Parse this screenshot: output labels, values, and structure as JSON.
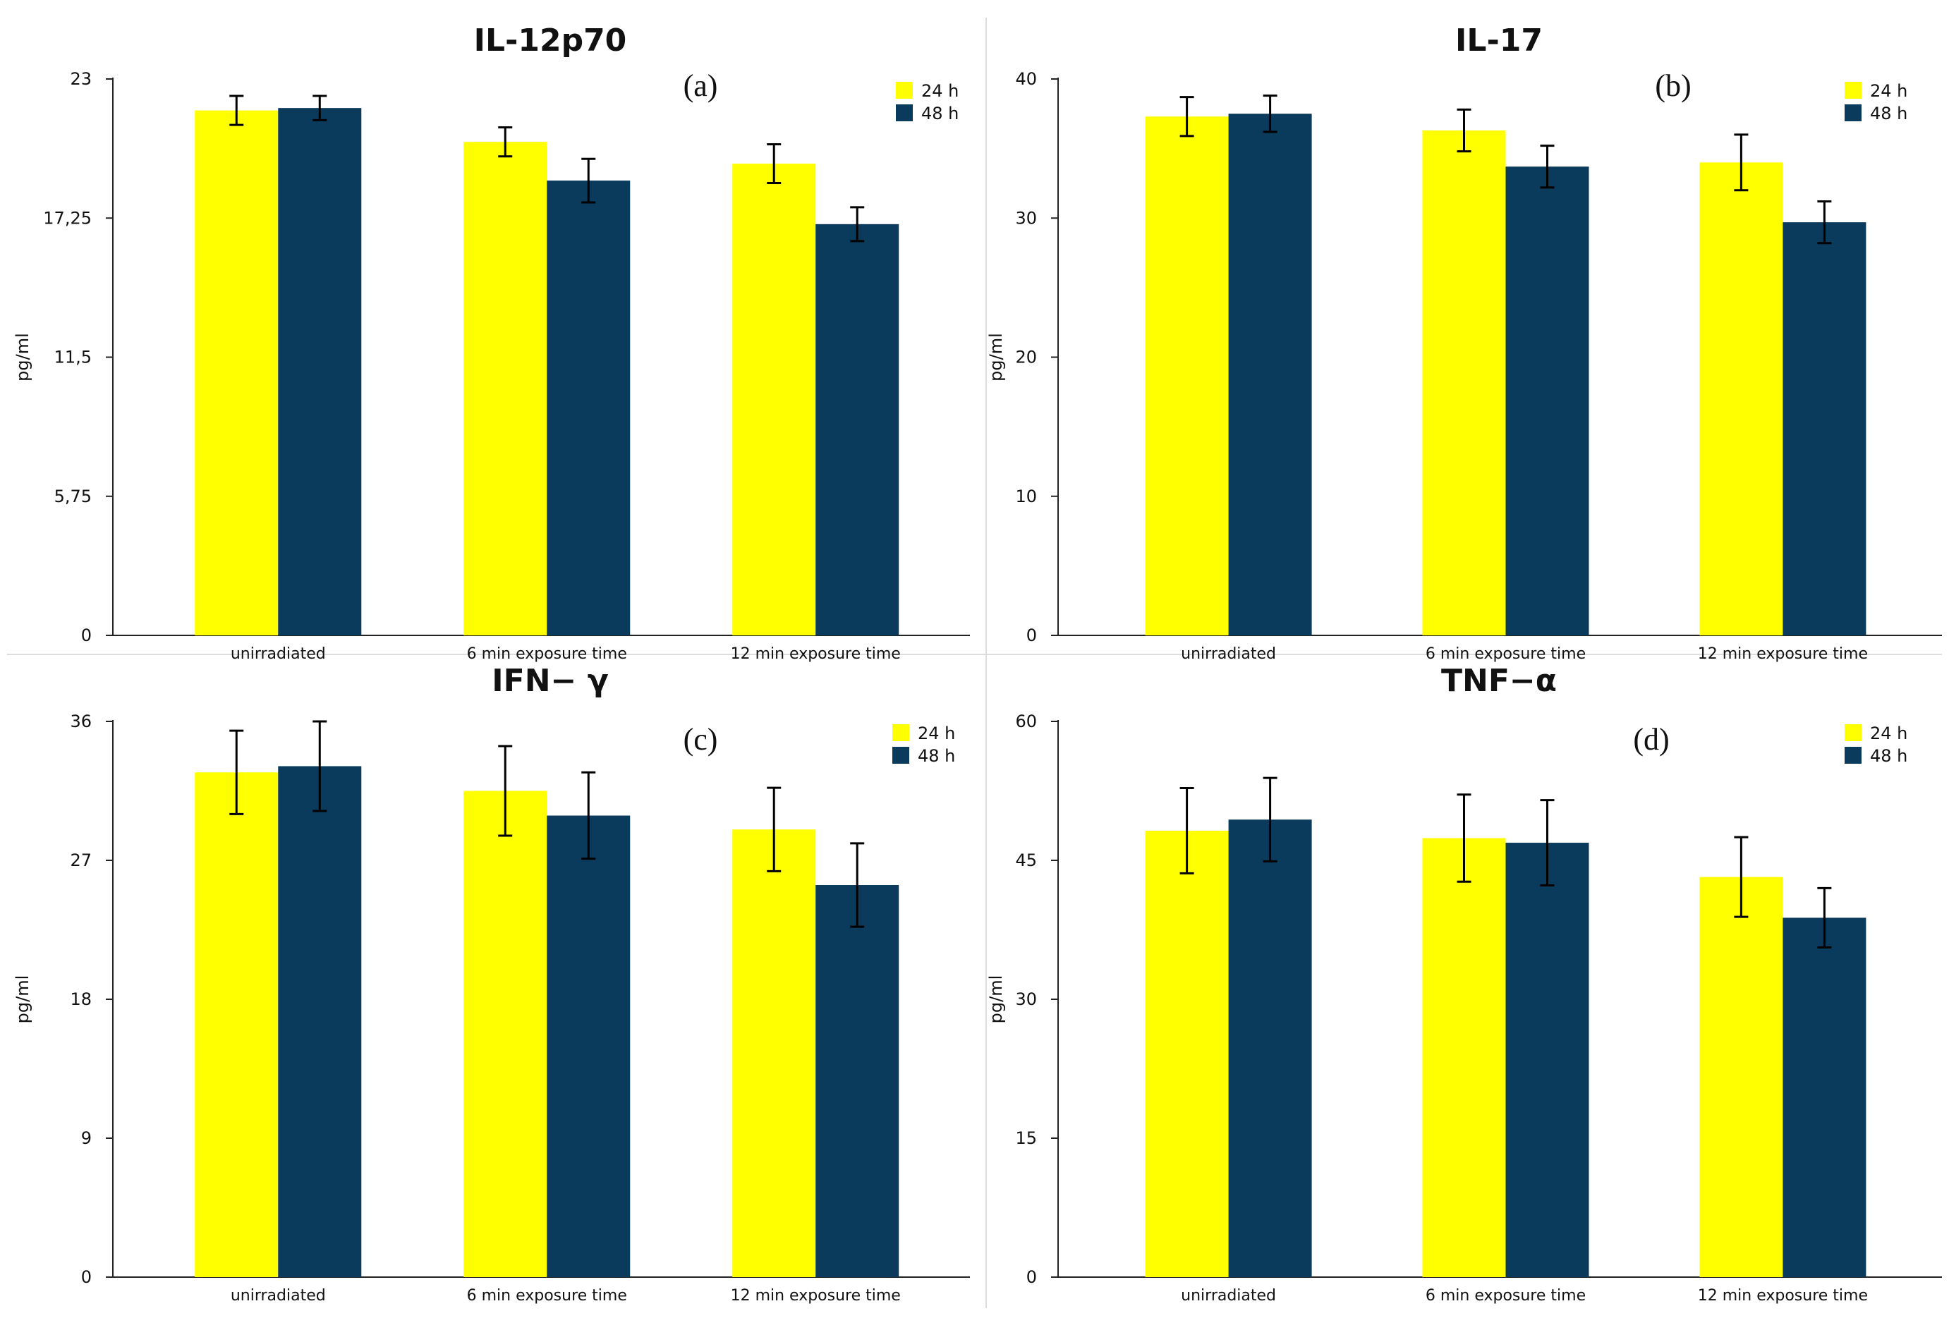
{
  "figure": {
    "colors": {
      "series_24h": "#ffff00",
      "series_48h": "#0a3a5c",
      "axis": "#222222",
      "text": "#111111",
      "divider": "#dddddd"
    }
  },
  "chart_data": [
    {
      "type": "bar",
      "title": "IL-12p70",
      "panel_label": "(a)",
      "xlabel": "",
      "ylabel": "pg/ml",
      "ylim": [
        0,
        23
      ],
      "yticks": [
        0,
        5.75,
        11.5,
        17.25,
        23
      ],
      "ytick_labels": [
        "0",
        "5,75",
        "11,5",
        "17,25",
        "23"
      ],
      "categories": [
        "unirradiated",
        "6 min exposure time",
        "12 min exposure time"
      ],
      "legend_position": "top-right",
      "series": [
        {
          "name": "24 h",
          "values": [
            21.7,
            20.4,
            19.5
          ],
          "errors": [
            0.6,
            0.6,
            0.8
          ]
        },
        {
          "name": "48 h",
          "values": [
            21.8,
            18.8,
            17.0
          ],
          "errors": [
            0.5,
            0.9,
            0.7
          ]
        }
      ]
    },
    {
      "type": "bar",
      "title": "IL-17",
      "panel_label": "(b)",
      "xlabel": "",
      "ylabel": "pg/ml",
      "ylim": [
        0,
        40
      ],
      "yticks": [
        0,
        10,
        20,
        30,
        40
      ],
      "ytick_labels": [
        "0",
        "10",
        "20",
        "30",
        "40"
      ],
      "categories": [
        "unirradiated",
        "6 min exposure time",
        "12 min exposure time"
      ],
      "legend_position": "top-right",
      "series": [
        {
          "name": "24 h",
          "values": [
            37.3,
            36.3,
            34.0
          ],
          "errors": [
            1.4,
            1.5,
            2.0
          ]
        },
        {
          "name": "48 h",
          "values": [
            37.5,
            33.7,
            29.7
          ],
          "errors": [
            1.3,
            1.5,
            1.5
          ]
        }
      ]
    },
    {
      "type": "bar",
      "title": "IFN− γ",
      "panel_label": "(c)",
      "xlabel": "",
      "ylabel": "pg/ml",
      "ylim": [
        0,
        36
      ],
      "yticks": [
        0,
        9,
        18,
        27,
        36
      ],
      "ytick_labels": [
        "0",
        "9",
        "18",
        "27",
        "36"
      ],
      "categories": [
        "unirradiated",
        "6 min exposure time",
        "12 min exposure time"
      ],
      "legend_position": "top-right",
      "series": [
        {
          "name": "24 h",
          "values": [
            32.7,
            31.5,
            29.0
          ],
          "errors": [
            2.7,
            2.9,
            2.7
          ]
        },
        {
          "name": "48 h",
          "values": [
            33.1,
            29.9,
            25.4
          ],
          "errors": [
            2.9,
            2.8,
            2.7
          ]
        }
      ]
    },
    {
      "type": "bar",
      "title": "TNF−α",
      "panel_label": "(d)",
      "xlabel": "",
      "ylabel": "pg/ml",
      "ylim": [
        0,
        60
      ],
      "yticks": [
        0,
        15,
        30,
        45,
        60
      ],
      "ytick_labels": [
        "0",
        "15",
        "30",
        "45",
        "60"
      ],
      "categories": [
        "unirradiated",
        "6 min exposure time",
        "12 min exposure time"
      ],
      "legend_position": "top-right",
      "series": [
        {
          "name": "24 h",
          "values": [
            48.2,
            47.4,
            43.2
          ],
          "errors": [
            4.6,
            4.7,
            4.3
          ]
        },
        {
          "name": "48 h",
          "values": [
            49.4,
            46.9,
            38.8
          ],
          "errors": [
            4.5,
            4.6,
            3.2
          ]
        }
      ]
    }
  ]
}
